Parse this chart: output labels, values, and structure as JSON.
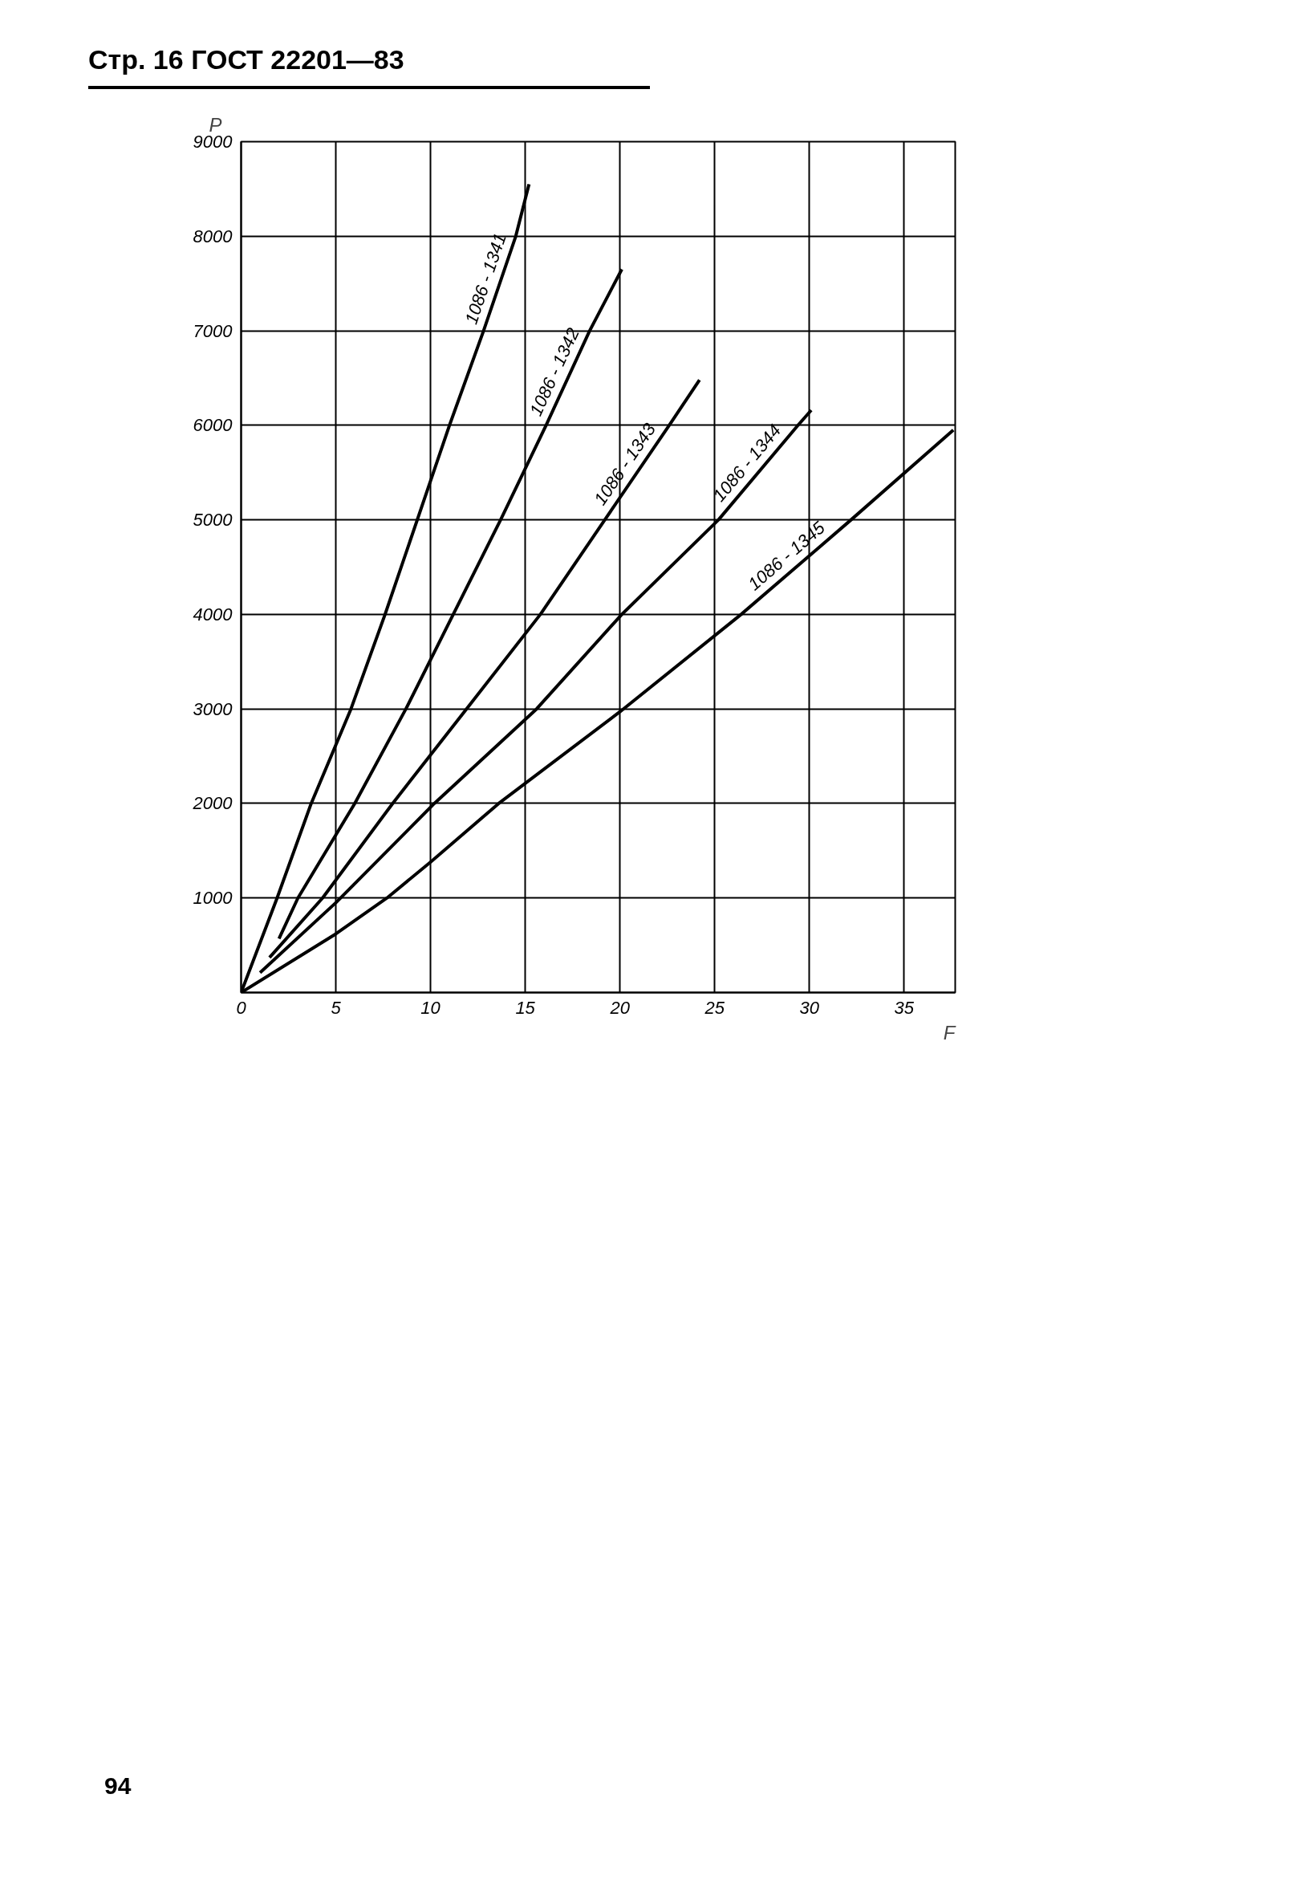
{
  "chart_data": {
    "type": "line",
    "title": "Стр. 16 ГОСТ 22201—83",
    "xlabel": "F",
    "ylabel": "P",
    "xlim": [
      0,
      37.7
    ],
    "ylim": [
      0,
      9000
    ],
    "xticks": [
      0,
      5,
      10,
      15,
      20,
      25,
      30,
      35
    ],
    "yticks": [
      {
        "value": 0,
        "label": null
      },
      1000,
      2000,
      3000,
      4000,
      5000,
      6000,
      7000,
      8000,
      9000
    ],
    "grid": true,
    "annotations": [
      "94"
    ],
    "series": [
      {
        "name": "1086 - 1341",
        "color": "#000000",
        "x": [
          0,
          1.9,
          3.7,
          5.8,
          7.6,
          9.3,
          11.0,
          12.8,
          14.5,
          15.2
        ],
        "values": [
          0,
          1000,
          2000,
          3000,
          4000,
          5000,
          6000,
          7000,
          8000,
          8550
        ]
      },
      {
        "name": "1086 - 1342",
        "color": "#000000",
        "x": [
          2.0,
          3.0,
          6.0,
          8.7,
          11.2,
          13.7,
          16.1,
          18.4,
          20.1
        ],
        "values": [
          570,
          1000,
          2000,
          3000,
          4000,
          5000,
          6000,
          7000,
          7650
        ]
      },
      {
        "name": "1086 - 1343",
        "color": "#000000",
        "x": [
          1.5,
          4.3,
          8.0,
          11.9,
          15.8,
          19.2,
          22.6,
          24.2
        ],
        "values": [
          370,
          1000,
          2000,
          3000,
          4000,
          5000,
          6000,
          6480
        ]
      },
      {
        "name": "1086 - 1344",
        "color": "#000000",
        "x": [
          1.0,
          5.0,
          10.2,
          15.6,
          20.1,
          25.2,
          29.4,
          30.1
        ],
        "values": [
          210,
          950,
          2000,
          3000,
          4000,
          5000,
          6000,
          6160
        ]
      },
      {
        "name": "1086 - 1345",
        "color": "#000000",
        "x": [
          0,
          5,
          7.7,
          10,
          13.6,
          20,
          26.4,
          32.2,
          37.6
        ],
        "values": [
          0,
          620,
          1000,
          1380,
          2000,
          2970,
          4000,
          5000,
          5950
        ]
      }
    ]
  }
}
